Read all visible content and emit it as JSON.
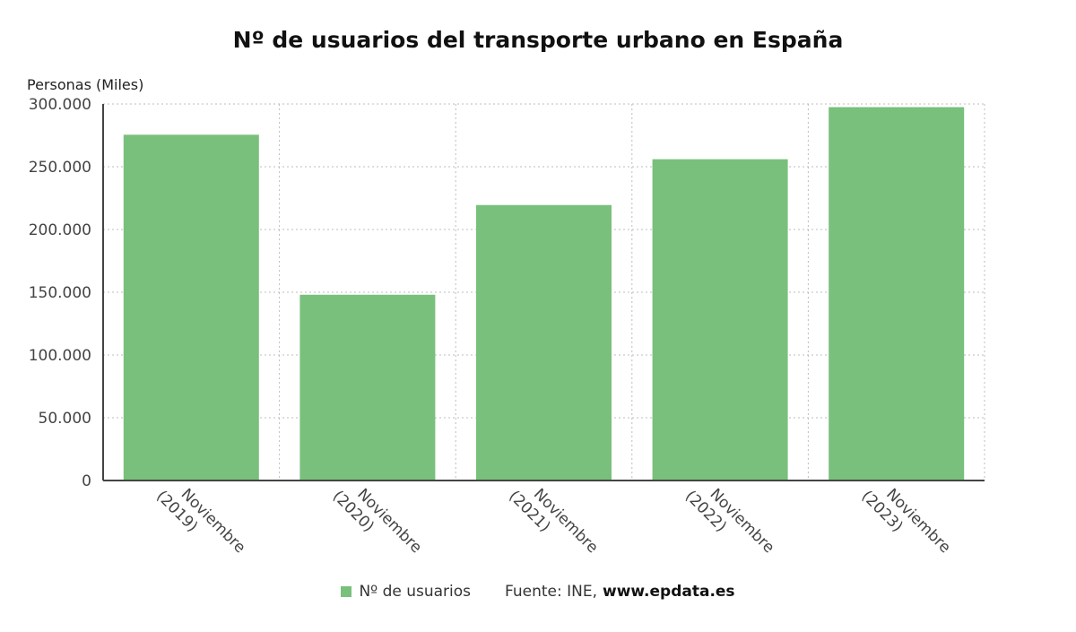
{
  "title": "Nº de usuarios del transporte urbano en España",
  "footer": {
    "source_label": "Fuente: INE,",
    "source_brand": "www.epdata.es"
  },
  "chart_data": {
    "type": "bar",
    "title": "Nº de usuarios del transporte urbano en España",
    "ylabel": "Personas (Miles)",
    "xlabel": "",
    "categories": [
      [
        "Noviembre",
        "(2019)"
      ],
      [
        "Noviembre",
        "(2020)"
      ],
      [
        "Noviembre",
        "(2021)"
      ],
      [
        "Noviembre",
        "(2022)"
      ],
      [
        "Noviembre",
        "(2023)"
      ]
    ],
    "series": [
      {
        "name": "Nº de usuarios",
        "color": "#79c07c",
        "values": [
          275500,
          148000,
          219500,
          256000,
          297500
        ]
      }
    ],
    "ylim": [
      0,
      300000
    ],
    "yticks": [
      0,
      50000,
      100000,
      150000,
      200000,
      250000,
      300000
    ],
    "ytick_labels": [
      "0",
      "50.000",
      "100.000",
      "150.000",
      "200.000",
      "250.000",
      "300.000"
    ],
    "grid": true,
    "legend": "bottom"
  }
}
